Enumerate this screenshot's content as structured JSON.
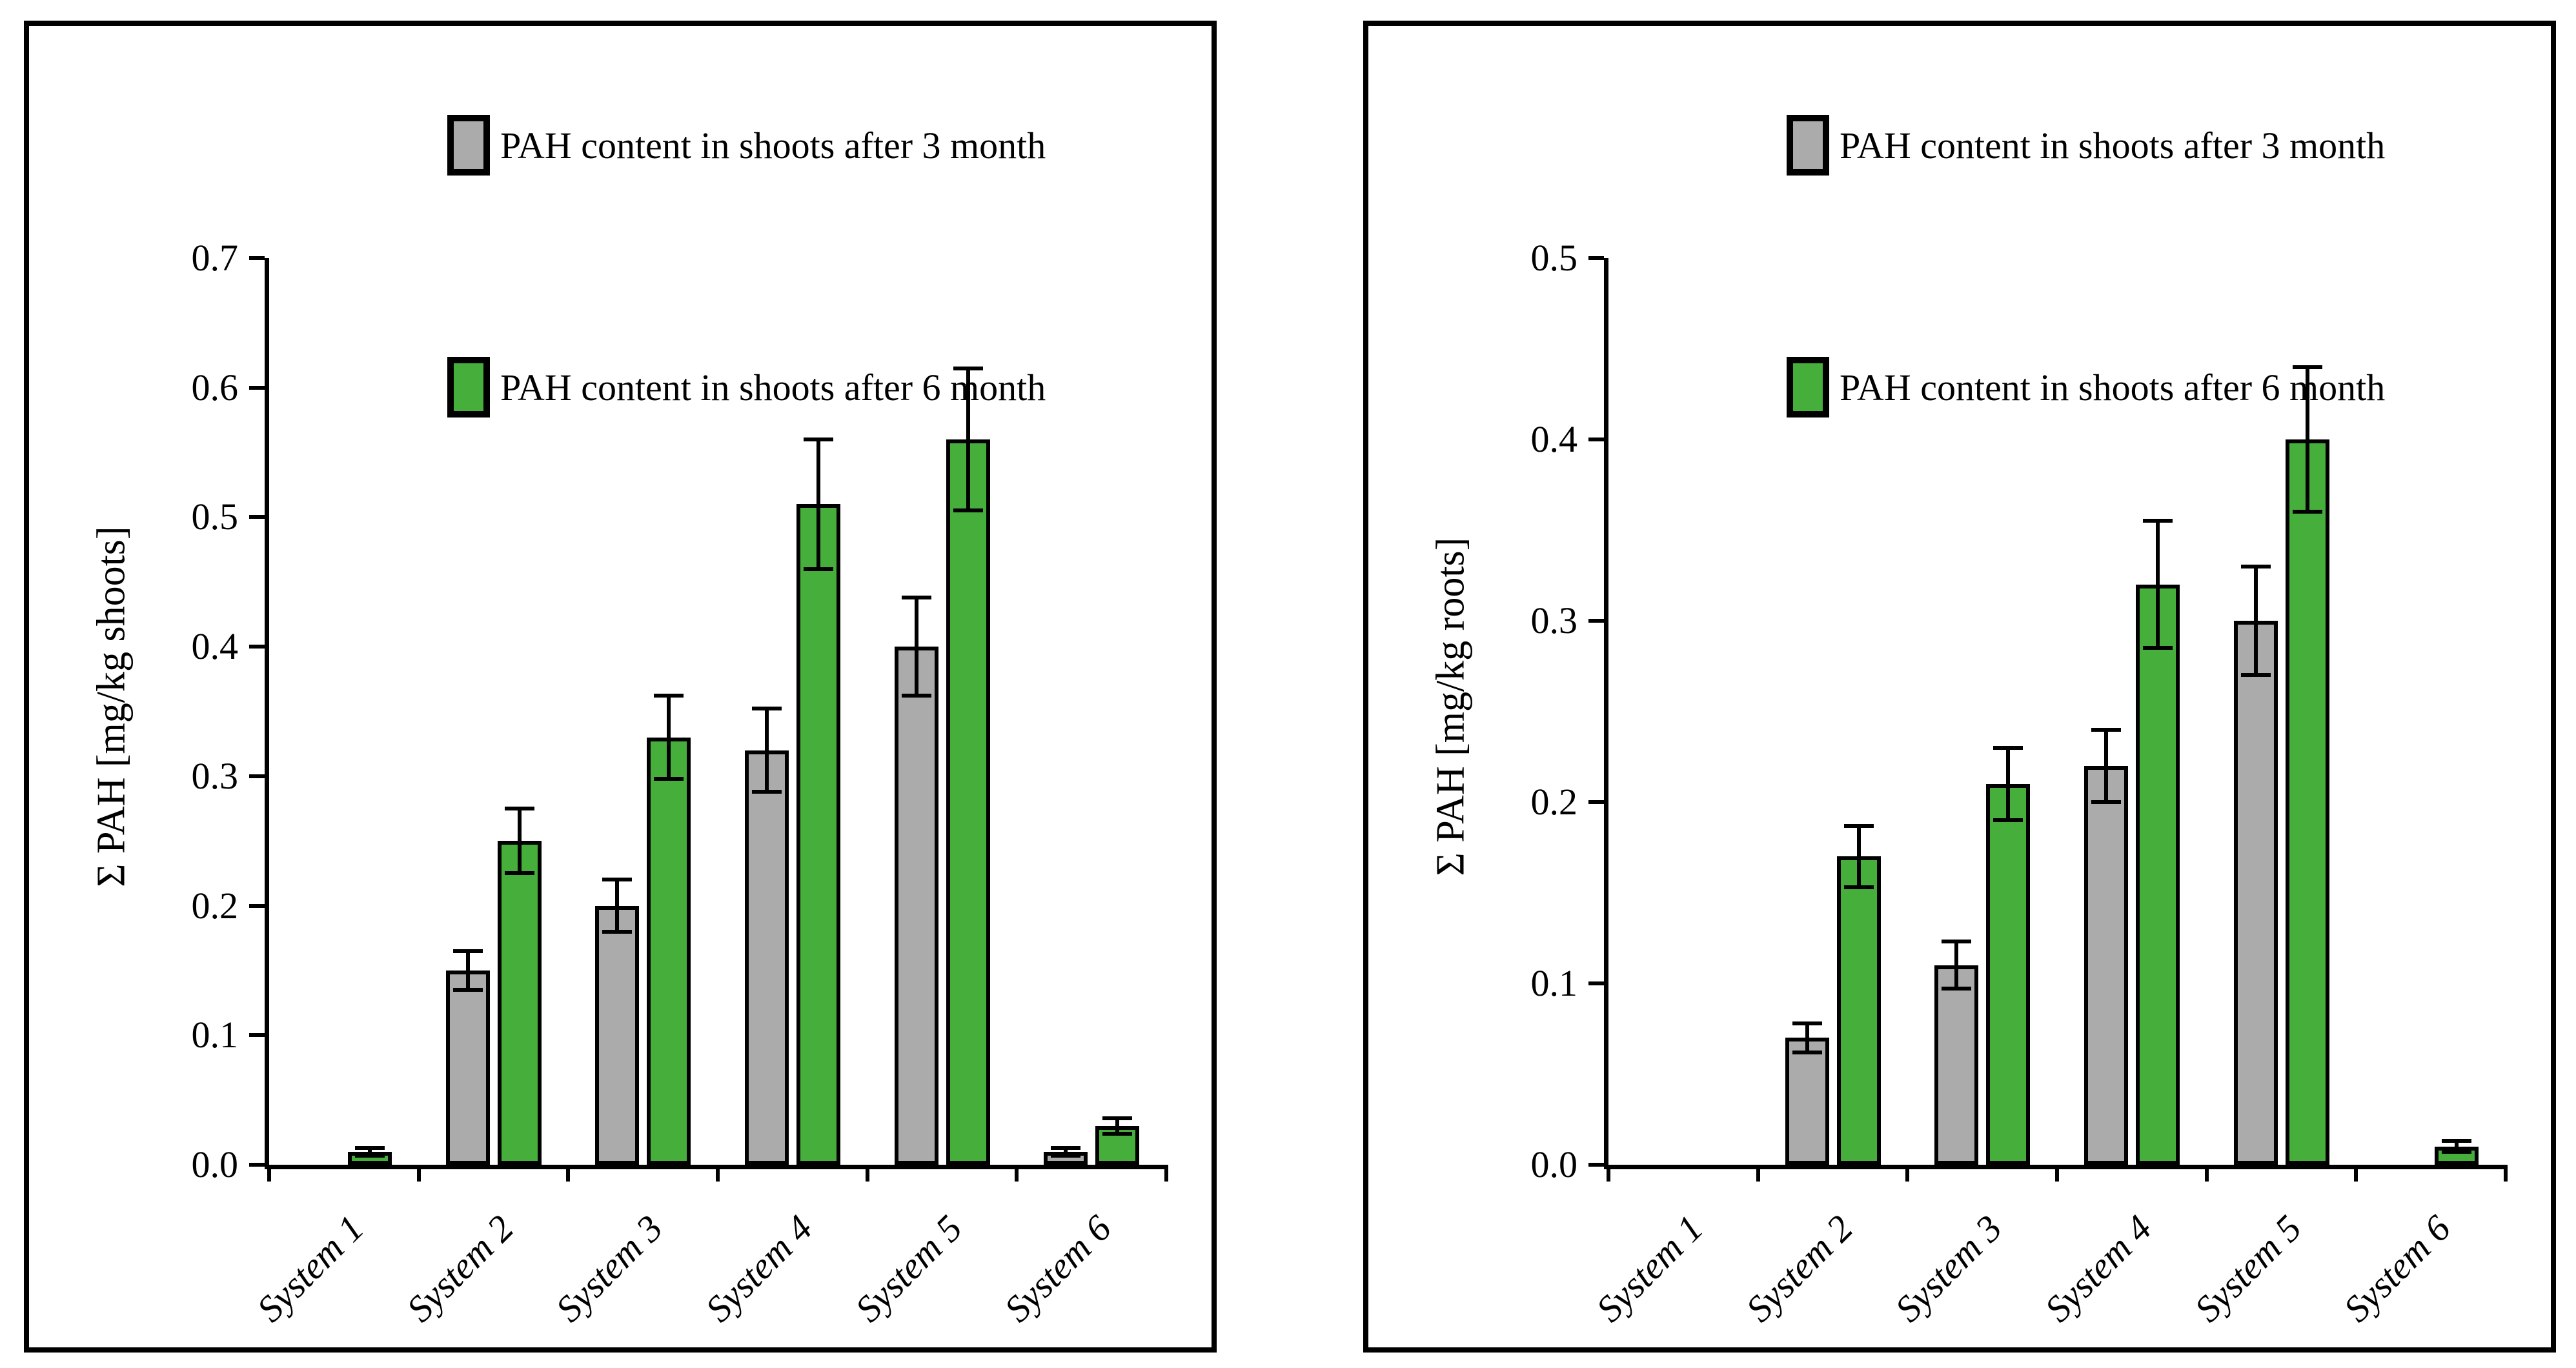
{
  "figure_type": "two-panel bar chart figure",
  "colors": {
    "series_3month_fill": "#ababab",
    "series_6month_fill": "#46ae3b",
    "bar_border": "#000000",
    "axis": "#000000",
    "background": "#ffffff"
  },
  "chart_data": [
    {
      "type": "bar",
      "title": "",
      "xlabel": "",
      "ylabel": "Σ PAH [mg/kg shoots]",
      "ylim": [
        0,
        0.7
      ],
      "ytick_step": 0.1,
      "ytick_decimals": 1,
      "grid": false,
      "legend_position": "top-right",
      "error_bars": true,
      "categories": [
        "System 1",
        "System 2",
        "System 3",
        "System 4",
        "System 5",
        "System 6"
      ],
      "series": [
        {
          "name": "PAH content in shoots  after 3 month",
          "color": "#ababab",
          "values": [
            0,
            0.15,
            0.2,
            0.32,
            0.4,
            0.01
          ],
          "errors": [
            0,
            0.015,
            0.02,
            0.032,
            0.038,
            0.003
          ]
        },
        {
          "name": "PAH content in shoots after 6 month",
          "color": "#46ae3b",
          "values": [
            0.01,
            0.25,
            0.33,
            0.51,
            0.56,
            0.03
          ],
          "errors": [
            0.003,
            0.025,
            0.032,
            0.05,
            0.055,
            0.006
          ]
        }
      ]
    },
    {
      "type": "bar",
      "title": "",
      "xlabel": "",
      "ylabel": "Σ PAH [mg/kg roots]",
      "ylim": [
        0,
        0.5
      ],
      "ytick_step": 0.1,
      "ytick_decimals": 1,
      "grid": false,
      "legend_position": "top-right",
      "error_bars": true,
      "categories": [
        "System 1",
        "System 2",
        "System 3",
        "System 4",
        "System 5",
        "System 6"
      ],
      "series": [
        {
          "name": "PAH content in shoots  after 3 month",
          "color": "#ababab",
          "values": [
            0,
            0.07,
            0.11,
            0.22,
            0.3,
            0
          ],
          "errors": [
            0,
            0.008,
            0.013,
            0.02,
            0.03,
            0
          ]
        },
        {
          "name": "PAH content in shoots after 6 month",
          "color": "#46ae3b",
          "values": [
            0,
            0.17,
            0.21,
            0.32,
            0.4,
            0.01
          ],
          "errors": [
            0,
            0.017,
            0.02,
            0.035,
            0.04,
            0.003
          ]
        }
      ]
    }
  ]
}
